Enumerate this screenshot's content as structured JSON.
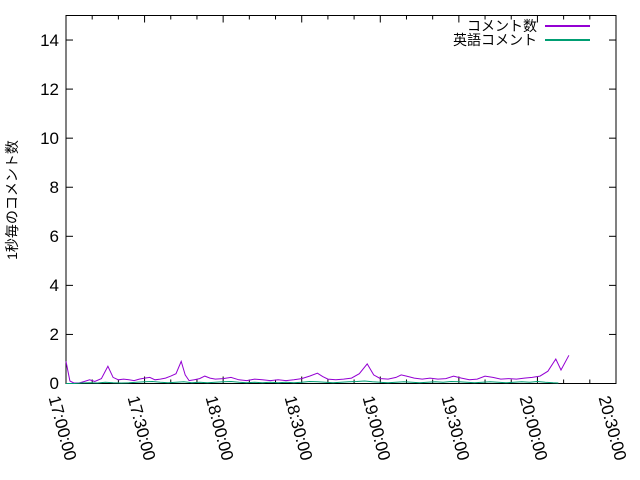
{
  "chart_data": {
    "type": "line",
    "title": "",
    "xlabel": "",
    "ylabel": "1秒毎のコメント数",
    "background": "#ffffff",
    "border_color": "#000000",
    "grid": false,
    "legend_position": "top-right-inside",
    "xlim": [
      "17:00:00",
      "20:30:00"
    ],
    "ylim": [
      0,
      15
    ],
    "x_ticks": [
      "17:00:00",
      "17:30:00",
      "18:00:00",
      "18:30:00",
      "19:00:00",
      "19:30:00",
      "20:00:00",
      "20:30:00"
    ],
    "x_minor_tick_interval_seconds": 600,
    "y_ticks": [
      "0",
      "2",
      "4",
      "6",
      "8",
      "10",
      "12",
      "14"
    ],
    "series": [
      {
        "name": "コメント数",
        "color": "#9400d3",
        "points": [
          [
            "17:00:00",
            0.9
          ],
          [
            "17:01:30",
            0.1
          ],
          [
            "17:03:00",
            0.02
          ],
          [
            "17:05:00",
            0.02
          ],
          [
            "17:07:00",
            0.08
          ],
          [
            "17:09:00",
            0.15
          ],
          [
            "17:11:00",
            0.08
          ],
          [
            "17:13:30",
            0.2
          ],
          [
            "17:16:00",
            0.7
          ],
          [
            "17:18:00",
            0.25
          ],
          [
            "17:20:00",
            0.15
          ],
          [
            "17:22:00",
            0.18
          ],
          [
            "17:24:00",
            0.15
          ],
          [
            "17:26:00",
            0.12
          ],
          [
            "17:28:00",
            0.18
          ],
          [
            "17:30:00",
            0.22
          ],
          [
            "17:32:00",
            0.25
          ],
          [
            "17:34:00",
            0.15
          ],
          [
            "17:36:00",
            0.18
          ],
          [
            "17:38:00",
            0.22
          ],
          [
            "17:40:00",
            0.3
          ],
          [
            "17:42:00",
            0.4
          ],
          [
            "17:44:00",
            0.9
          ],
          [
            "17:45:30",
            0.35
          ],
          [
            "17:47:00",
            0.12
          ],
          [
            "17:49:00",
            0.15
          ],
          [
            "17:51:00",
            0.2
          ],
          [
            "17:53:00",
            0.3
          ],
          [
            "17:55:00",
            0.22
          ],
          [
            "17:57:00",
            0.18
          ],
          [
            "18:00:00",
            0.2
          ],
          [
            "18:03:00",
            0.25
          ],
          [
            "18:06:00",
            0.15
          ],
          [
            "18:09:00",
            0.12
          ],
          [
            "18:12:00",
            0.18
          ],
          [
            "18:15:00",
            0.15
          ],
          [
            "18:18:00",
            0.12
          ],
          [
            "18:21:00",
            0.15
          ],
          [
            "18:24:00",
            0.12
          ],
          [
            "18:27:00",
            0.15
          ],
          [
            "18:30:00",
            0.2
          ],
          [
            "18:33:00",
            0.3
          ],
          [
            "18:36:00",
            0.42
          ],
          [
            "18:38:00",
            0.28
          ],
          [
            "18:40:00",
            0.18
          ],
          [
            "18:43:00",
            0.15
          ],
          [
            "18:46:00",
            0.18
          ],
          [
            "18:49:00",
            0.22
          ],
          [
            "18:52:00",
            0.4
          ],
          [
            "18:55:00",
            0.8
          ],
          [
            "18:57:30",
            0.35
          ],
          [
            "19:00:00",
            0.2
          ],
          [
            "19:03:00",
            0.18
          ],
          [
            "19:06:00",
            0.25
          ],
          [
            "19:08:00",
            0.35
          ],
          [
            "19:10:00",
            0.3
          ],
          [
            "19:13:00",
            0.22
          ],
          [
            "19:16:00",
            0.18
          ],
          [
            "19:19:00",
            0.22
          ],
          [
            "19:22:00",
            0.18
          ],
          [
            "19:25:00",
            0.2
          ],
          [
            "19:28:00",
            0.3
          ],
          [
            "19:31:00",
            0.22
          ],
          [
            "19:34:00",
            0.15
          ],
          [
            "19:37:00",
            0.18
          ],
          [
            "19:40:00",
            0.3
          ],
          [
            "19:43:00",
            0.25
          ],
          [
            "19:46:00",
            0.18
          ],
          [
            "19:49:00",
            0.2
          ],
          [
            "19:52:00",
            0.18
          ],
          [
            "19:55:00",
            0.22
          ],
          [
            "19:58:00",
            0.25
          ],
          [
            "20:01:00",
            0.3
          ],
          [
            "20:04:00",
            0.5
          ],
          [
            "20:07:00",
            1.0
          ],
          [
            "20:09:00",
            0.55
          ],
          [
            "20:12:00",
            1.15
          ]
        ]
      },
      {
        "name": "英語コメント",
        "color": "#009e73",
        "points": [
          [
            "17:00:00",
            0
          ],
          [
            "17:03:00",
            0
          ],
          [
            "17:06:00",
            0.02
          ],
          [
            "17:09:00",
            0.03
          ],
          [
            "17:12:00",
            0.02
          ],
          [
            "17:15:00",
            0.05
          ],
          [
            "17:18:00",
            0.03
          ],
          [
            "17:21:00",
            0.02
          ],
          [
            "17:24:00",
            0.03
          ],
          [
            "17:27:00",
            0.05
          ],
          [
            "17:30:00",
            0.07
          ],
          [
            "17:33:00",
            0.08
          ],
          [
            "17:36:00",
            0.05
          ],
          [
            "17:39:00",
            0.03
          ],
          [
            "17:42:00",
            0.05
          ],
          [
            "17:45:00",
            0.07
          ],
          [
            "17:48:00",
            0.03
          ],
          [
            "17:51:00",
            0.05
          ],
          [
            "17:54:00",
            0.03
          ],
          [
            "17:57:00",
            0.05
          ],
          [
            "18:00:00",
            0.07
          ],
          [
            "18:03:00",
            0.08
          ],
          [
            "18:06:00",
            0.05
          ],
          [
            "18:09:00",
            0.03
          ],
          [
            "18:12:00",
            0.05
          ],
          [
            "18:15:00",
            0.03
          ],
          [
            "18:18:00",
            0.05
          ],
          [
            "18:21:00",
            0.03
          ],
          [
            "18:24:00",
            0.05
          ],
          [
            "18:27:00",
            0.03
          ],
          [
            "18:30:00",
            0.05
          ],
          [
            "18:33:00",
            0.08
          ],
          [
            "18:36:00",
            0.07
          ],
          [
            "18:39:00",
            0.05
          ],
          [
            "18:42:00",
            0.03
          ],
          [
            "18:45:00",
            0.05
          ],
          [
            "18:48:00",
            0.07
          ],
          [
            "18:51:00",
            0.08
          ],
          [
            "18:54:00",
            0.1
          ],
          [
            "18:57:00",
            0.07
          ],
          [
            "19:00:00",
            0.05
          ],
          [
            "19:03:00",
            0.03
          ],
          [
            "19:06:00",
            0.05
          ],
          [
            "19:09:00",
            0.07
          ],
          [
            "19:12:00",
            0.05
          ],
          [
            "19:15:00",
            0.03
          ],
          [
            "19:18:00",
            0.05
          ],
          [
            "19:21:00",
            0.07
          ],
          [
            "19:24:00",
            0.05
          ],
          [
            "19:27:00",
            0.08
          ],
          [
            "19:30:00",
            0.07
          ],
          [
            "19:33:00",
            0.05
          ],
          [
            "19:36:00",
            0.03
          ],
          [
            "19:39:00",
            0.05
          ],
          [
            "19:42:00",
            0.07
          ],
          [
            "19:45:00",
            0.05
          ],
          [
            "19:48:00",
            0.03
          ],
          [
            "19:51:00",
            0.05
          ],
          [
            "19:54:00",
            0.07
          ],
          [
            "19:57:00",
            0.05
          ],
          [
            "20:00:00",
            0.08
          ],
          [
            "20:03:00",
            0.05
          ],
          [
            "20:06:00",
            0.03
          ],
          [
            "20:08:00",
            0.02
          ]
        ]
      }
    ]
  }
}
